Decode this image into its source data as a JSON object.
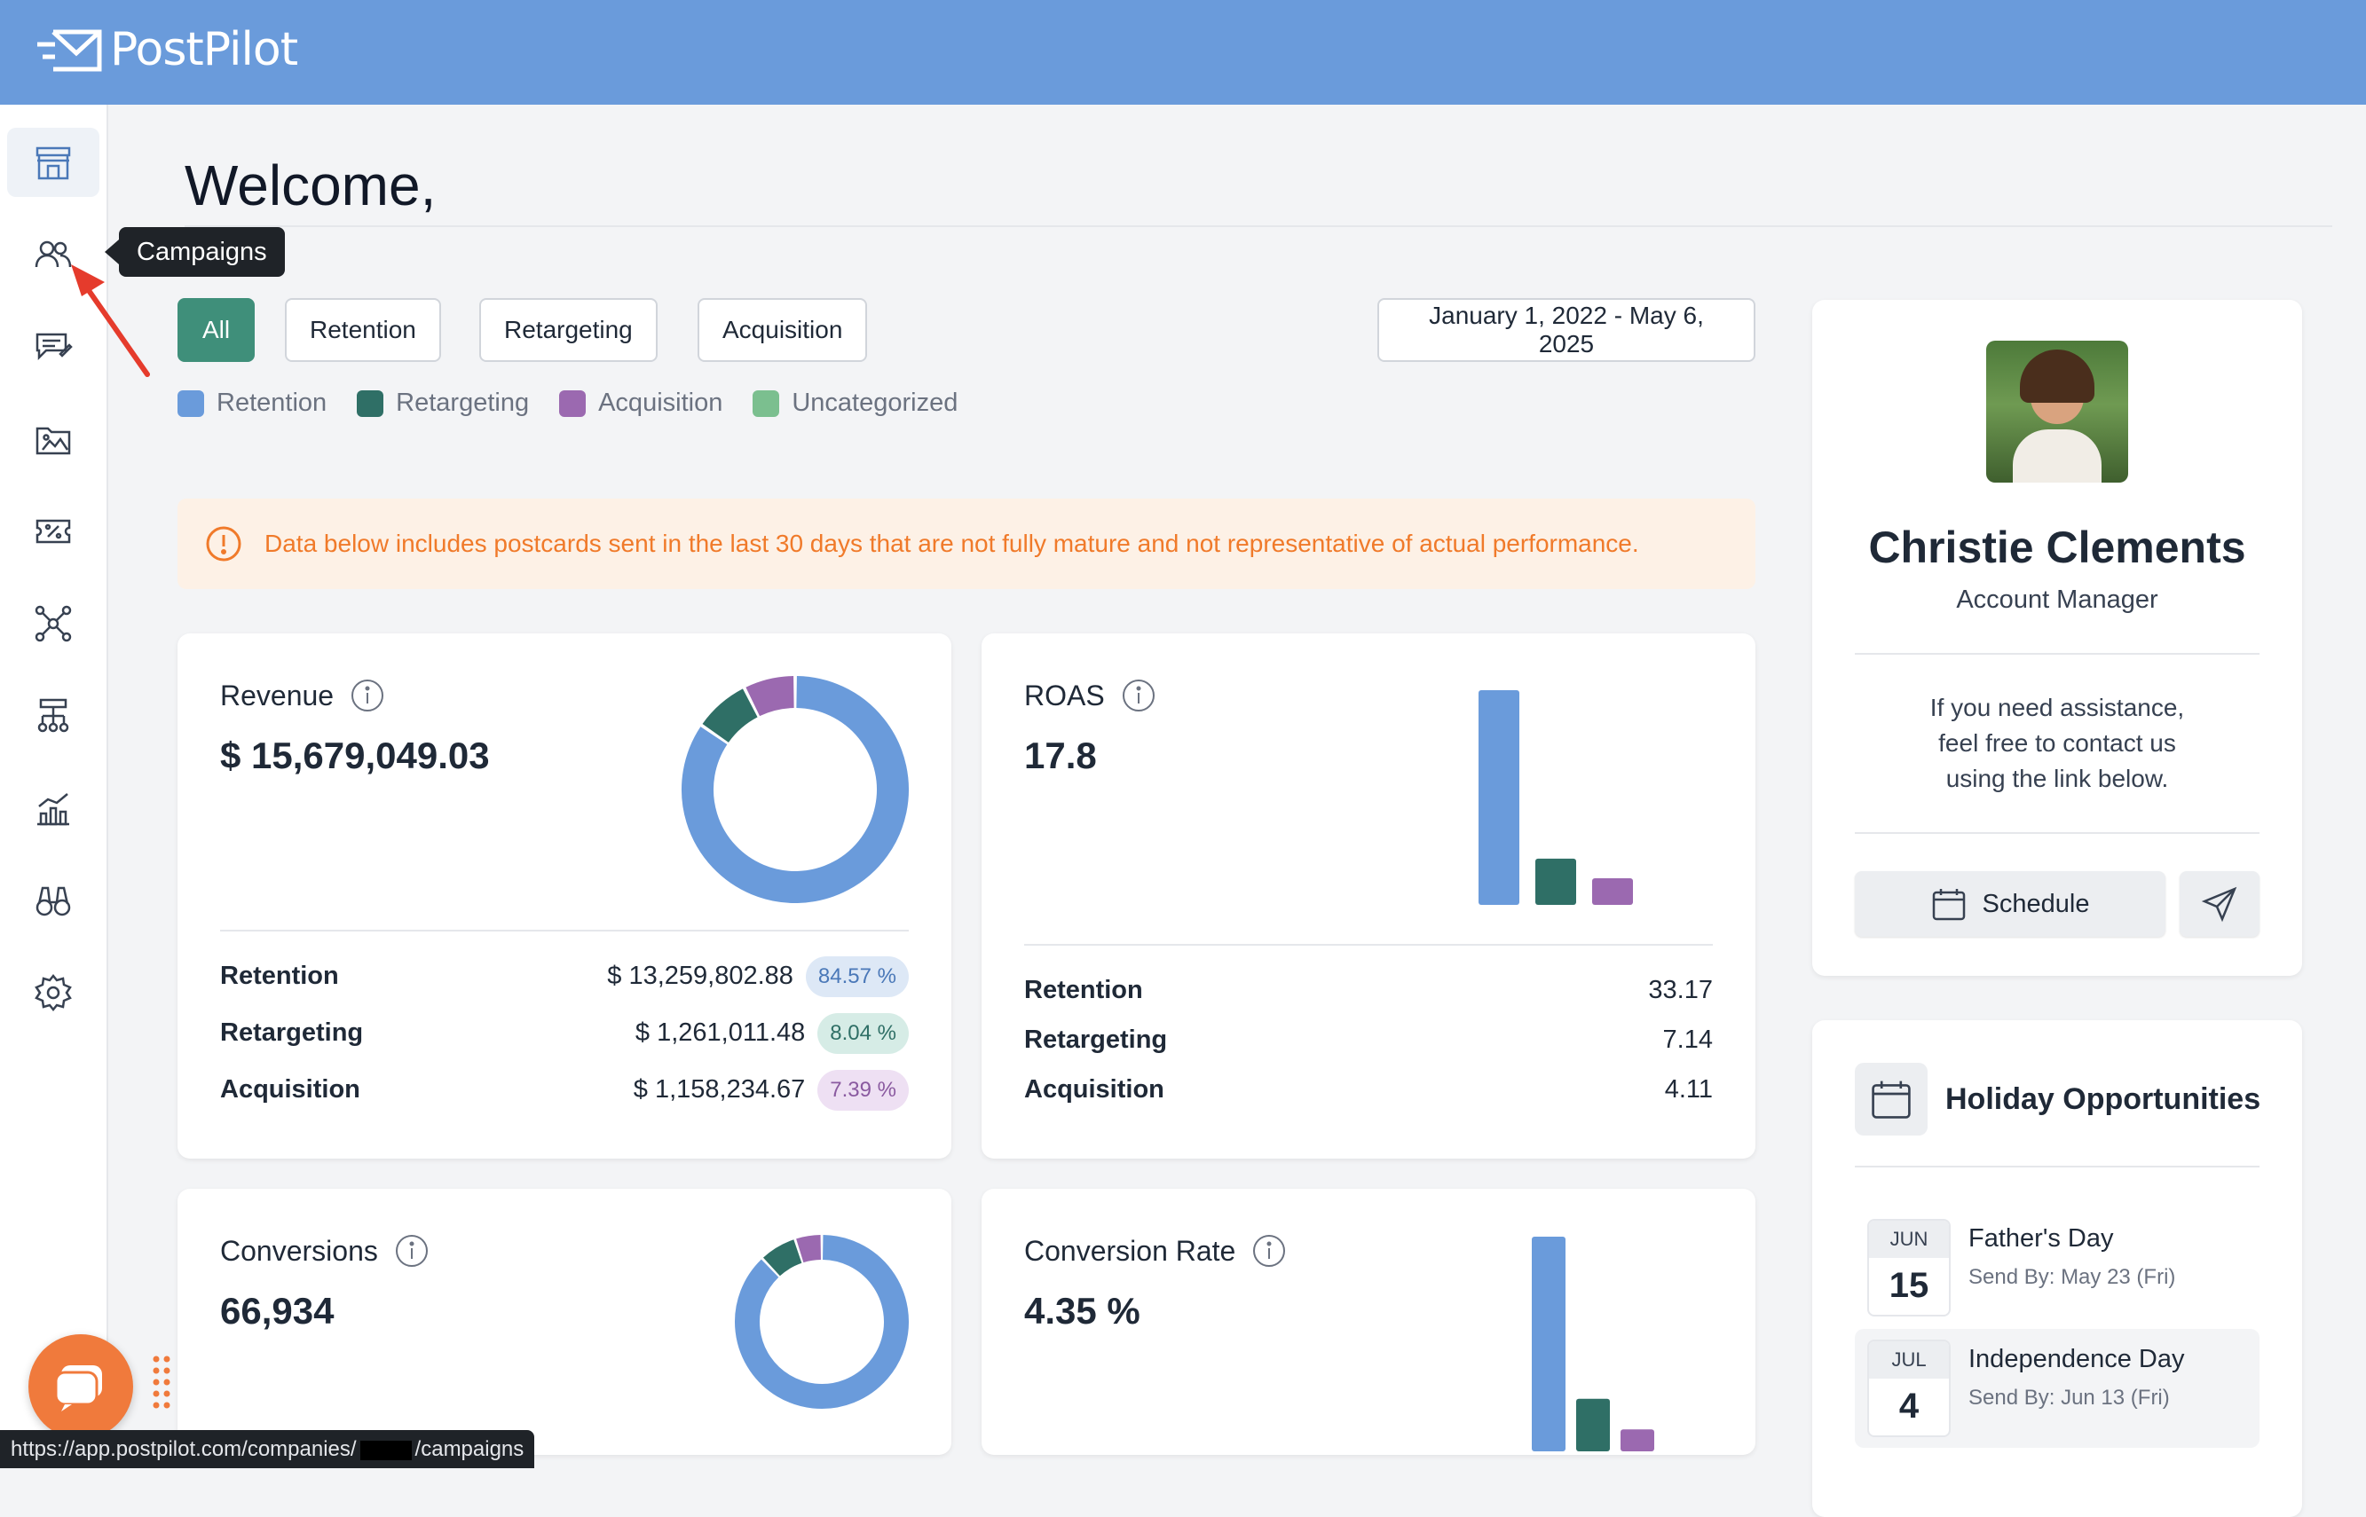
{
  "brand": {
    "name": "PostPilot"
  },
  "sidebar": {
    "items": [
      {
        "name": "store-icon"
      },
      {
        "name": "campaigns-icon"
      },
      {
        "name": "messages-icon"
      },
      {
        "name": "gallery-icon"
      },
      {
        "name": "discount-icon"
      },
      {
        "name": "network-icon"
      },
      {
        "name": "hierarchy-icon"
      },
      {
        "name": "analytics-icon"
      },
      {
        "name": "binoculars-icon"
      },
      {
        "name": "settings-icon"
      }
    ],
    "tooltip": "Campaigns"
  },
  "page": {
    "title": "Welcome,"
  },
  "filters": {
    "buttons": [
      "All",
      "Retention",
      "Retargeting",
      "Acquisition"
    ],
    "active": "All",
    "date_range": "January 1, 2022 - May 6, 2025"
  },
  "legend": [
    {
      "label": "Retention",
      "color": "#6a9bdb"
    },
    {
      "label": "Retargeting",
      "color": "#2f6f66"
    },
    {
      "label": "Acquisition",
      "color": "#9b69b0"
    },
    {
      "label": "Uncategorized",
      "color": "#7bbf8f"
    }
  ],
  "alert": {
    "text": "Data below includes postcards sent in the last 30 days that are not fully mature and not representative of actual performance."
  },
  "revenue": {
    "title": "Revenue",
    "value": "$ 15,679,049.03",
    "rows": [
      {
        "label": "Retention",
        "amount": "$ 13,259,802.88",
        "pct": "84.57 %",
        "bg": "#dde8f6",
        "fg": "#4a78b8"
      },
      {
        "label": "Retargeting",
        "amount": "$ 1,261,011.48",
        "pct": "8.04 %",
        "bg": "#d6ece6",
        "fg": "#2f6f66"
      },
      {
        "label": "Acquisition",
        "amount": "$ 1,158,234.67",
        "pct": "7.39 %",
        "bg": "#eee0f3",
        "fg": "#8a5aa0"
      }
    ]
  },
  "roas": {
    "title": "ROAS",
    "value": "17.8",
    "rows": [
      {
        "label": "Retention",
        "value": "33.17"
      },
      {
        "label": "Retargeting",
        "value": "7.14"
      },
      {
        "label": "Acquisition",
        "value": "4.11"
      }
    ]
  },
  "conversions": {
    "title": "Conversions",
    "value": "66,934"
  },
  "conversion_rate": {
    "title": "Conversion Rate",
    "value": "4.35 %"
  },
  "account_manager": {
    "name": "Christie Clements",
    "role": "Account Manager",
    "help": "If you need assistance, feel free to contact us using the link below.",
    "schedule_label": "Schedule"
  },
  "holidays": {
    "title": "Holiday Opportunities",
    "items": [
      {
        "month": "JUN",
        "day": "15",
        "name": "Father's Day",
        "send_by": "Send By: May 23 (Fri)"
      },
      {
        "month": "JUL",
        "day": "4",
        "name": "Independence Day",
        "send_by": "Send By: Jun 13 (Fri)"
      }
    ]
  },
  "status_bar": {
    "url_prefix": "https://app.postpilot.com/companies/",
    "url_suffix": "/campaigns"
  },
  "chart_data": [
    {
      "type": "pie",
      "title": "Revenue",
      "categories": [
        "Retention",
        "Retargeting",
        "Acquisition"
      ],
      "values": [
        84.57,
        8.04,
        7.39
      ],
      "colors": [
        "#6a9bdb",
        "#2f6f66",
        "#9b69b0"
      ]
    },
    {
      "type": "bar",
      "title": "ROAS",
      "categories": [
        "Retention",
        "Retargeting",
        "Acquisition"
      ],
      "values": [
        33.17,
        7.14,
        4.11
      ],
      "colors": [
        "#6a9bdb",
        "#2f6f66",
        "#9b69b0"
      ]
    },
    {
      "type": "pie",
      "title": "Conversions",
      "categories": [
        "Retention",
        "Retargeting",
        "Acquisition"
      ],
      "values": [
        88,
        7,
        5
      ],
      "colors": [
        "#6a9bdb",
        "#2f6f66",
        "#9b69b0"
      ]
    },
    {
      "type": "bar",
      "title": "Conversion Rate",
      "categories": [
        "Retention",
        "Retargeting",
        "Acquisition"
      ],
      "values": [
        4.9,
        1.2,
        0.5
      ],
      "colors": [
        "#6a9bdb",
        "#2f6f66",
        "#9b69b0"
      ]
    }
  ]
}
